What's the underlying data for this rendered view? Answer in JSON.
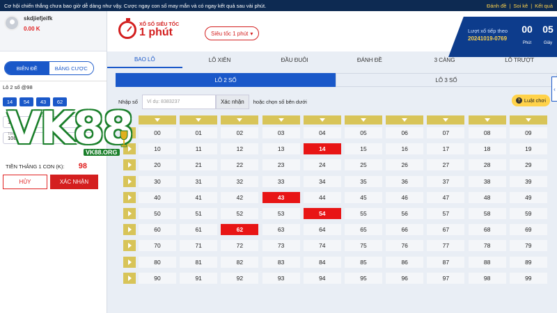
{
  "topbar": {
    "message": "Cơ hội chiến thắng chưa bao giờ dễ dàng như vậy. Cược ngay con số may mắn và có ngay kết quả sau vài phút.",
    "links": [
      "Đánh đề",
      "Soi kê",
      "Kết quả"
    ]
  },
  "user": {
    "name": "skdjiefjeifk",
    "balance": "0.00 K"
  },
  "left": {
    "modes": [
      "BIÊN ĐỀ",
      "BẢNG CƯỢC"
    ],
    "bet_title": "Lô 2 số @98",
    "chips": [
      "14",
      "54",
      "43",
      "62"
    ],
    "field1_label": "Số điểm",
    "field1_value": "1.0",
    "field2_label": "Tổng cược (K)",
    "field2_value": "108.00",
    "win_label": "TIỀN THẮNG 1 CON (K):",
    "win_value": "98",
    "cancel": "HỦY",
    "confirm": "XÁC NHẬN"
  },
  "header": {
    "logo_small": "XỔ SỐ SIÊU TỐC",
    "logo_big": "1 phút",
    "mode": "Siêu tốc 1 phút",
    "next_draw_label": "Lượt xổ tiếp theo",
    "next_draw_id": "20241019-0769",
    "minutes": "00",
    "minutes_label": "Phút",
    "seconds": "05",
    "seconds_label": "Giây"
  },
  "nav": [
    "BAO LÔ",
    "LÔ XIÊN",
    "ĐẦU ĐUÔI",
    "ĐÁNH ĐỀ",
    "3 CÀNG",
    "LÔ TRƯỢT"
  ],
  "subtabs": [
    "LÔ 2 SỐ",
    "LÔ 3 SỐ"
  ],
  "input": {
    "label": "Nhập số",
    "placeholder": "Ví dụ: 8383237",
    "button": "Xác nhận",
    "hint": "hoặc chọn số bên dưới"
  },
  "rules": "Luật chơi",
  "selected": [
    "14",
    "43",
    "54",
    "62"
  ],
  "watermark": {
    "brand": "VK88",
    "domain": "VK88.ORG"
  },
  "colors": {
    "primary": "#1a58c9",
    "selected": "#e81515",
    "arrow": "#d8c458"
  }
}
